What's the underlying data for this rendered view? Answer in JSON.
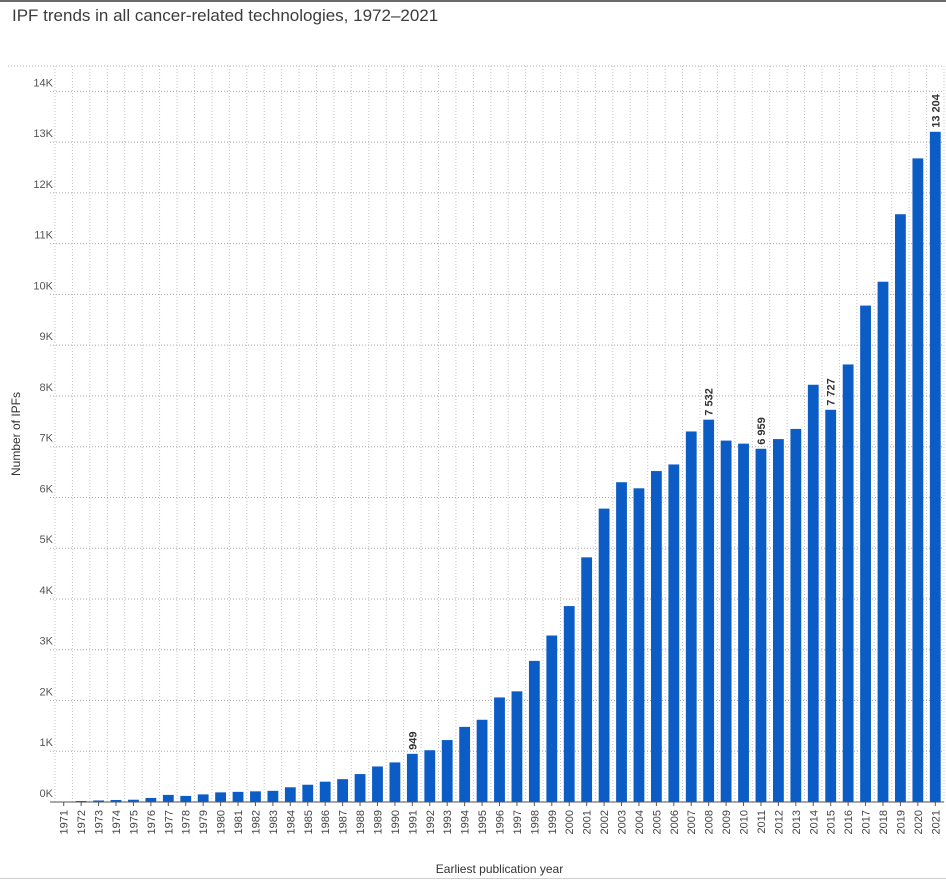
{
  "chart_data": {
    "type": "bar",
    "title": "IPF trends in all cancer-related technologies, 1972–2021",
    "xlabel": "Earliest publication year",
    "ylabel": "Number of IPFs",
    "ylim": [
      0,
      14500
    ],
    "yticks": [
      0,
      1000,
      2000,
      3000,
      4000,
      5000,
      6000,
      7000,
      8000,
      9000,
      10000,
      11000,
      12000,
      13000,
      14000
    ],
    "ytick_labels": [
      "0K",
      "1K",
      "2K",
      "3K",
      "4K",
      "5K",
      "6K",
      "7K",
      "8K",
      "9K",
      "10K",
      "11K",
      "12K",
      "13K",
      "14K"
    ],
    "grid": true,
    "bar_color": "#0b5cc4",
    "categories": [
      "1971",
      "1972",
      "1973",
      "1974",
      "1975",
      "1976",
      "1977",
      "1978",
      "1979",
      "1980",
      "1981",
      "1982",
      "1983",
      "1984",
      "1985",
      "1986",
      "1987",
      "1988",
      "1989",
      "1990",
      "1991",
      "1992",
      "1993",
      "1994",
      "1995",
      "1996",
      "1997",
      "1998",
      "1999",
      "2000",
      "2001",
      "2002",
      "2003",
      "2004",
      "2005",
      "2006",
      "2007",
      "2008",
      "2009",
      "2010",
      "2011",
      "2012",
      "2013",
      "2014",
      "2015",
      "2016",
      "2017",
      "2018",
      "2019",
      "2020",
      "2021"
    ],
    "values": [
      10,
      20,
      30,
      40,
      45,
      80,
      140,
      120,
      150,
      190,
      200,
      210,
      220,
      290,
      340,
      400,
      450,
      550,
      700,
      780,
      949,
      1020,
      1220,
      1480,
      1620,
      2060,
      2180,
      2780,
      3280,
      3860,
      4820,
      5780,
      6300,
      6180,
      6520,
      6650,
      7300,
      7532,
      7120,
      7060,
      6959,
      7150,
      7350,
      8220,
      7727,
      8620,
      9780,
      10250,
      11580,
      12680,
      13204
    ],
    "data_labels": [
      {
        "category": "1991",
        "label": "949"
      },
      {
        "category": "2008",
        "label": "7 532"
      },
      {
        "category": "2011",
        "label": "6 959"
      },
      {
        "category": "2015",
        "label": "7 727"
      },
      {
        "category": "2021",
        "label": "13 204"
      }
    ]
  }
}
